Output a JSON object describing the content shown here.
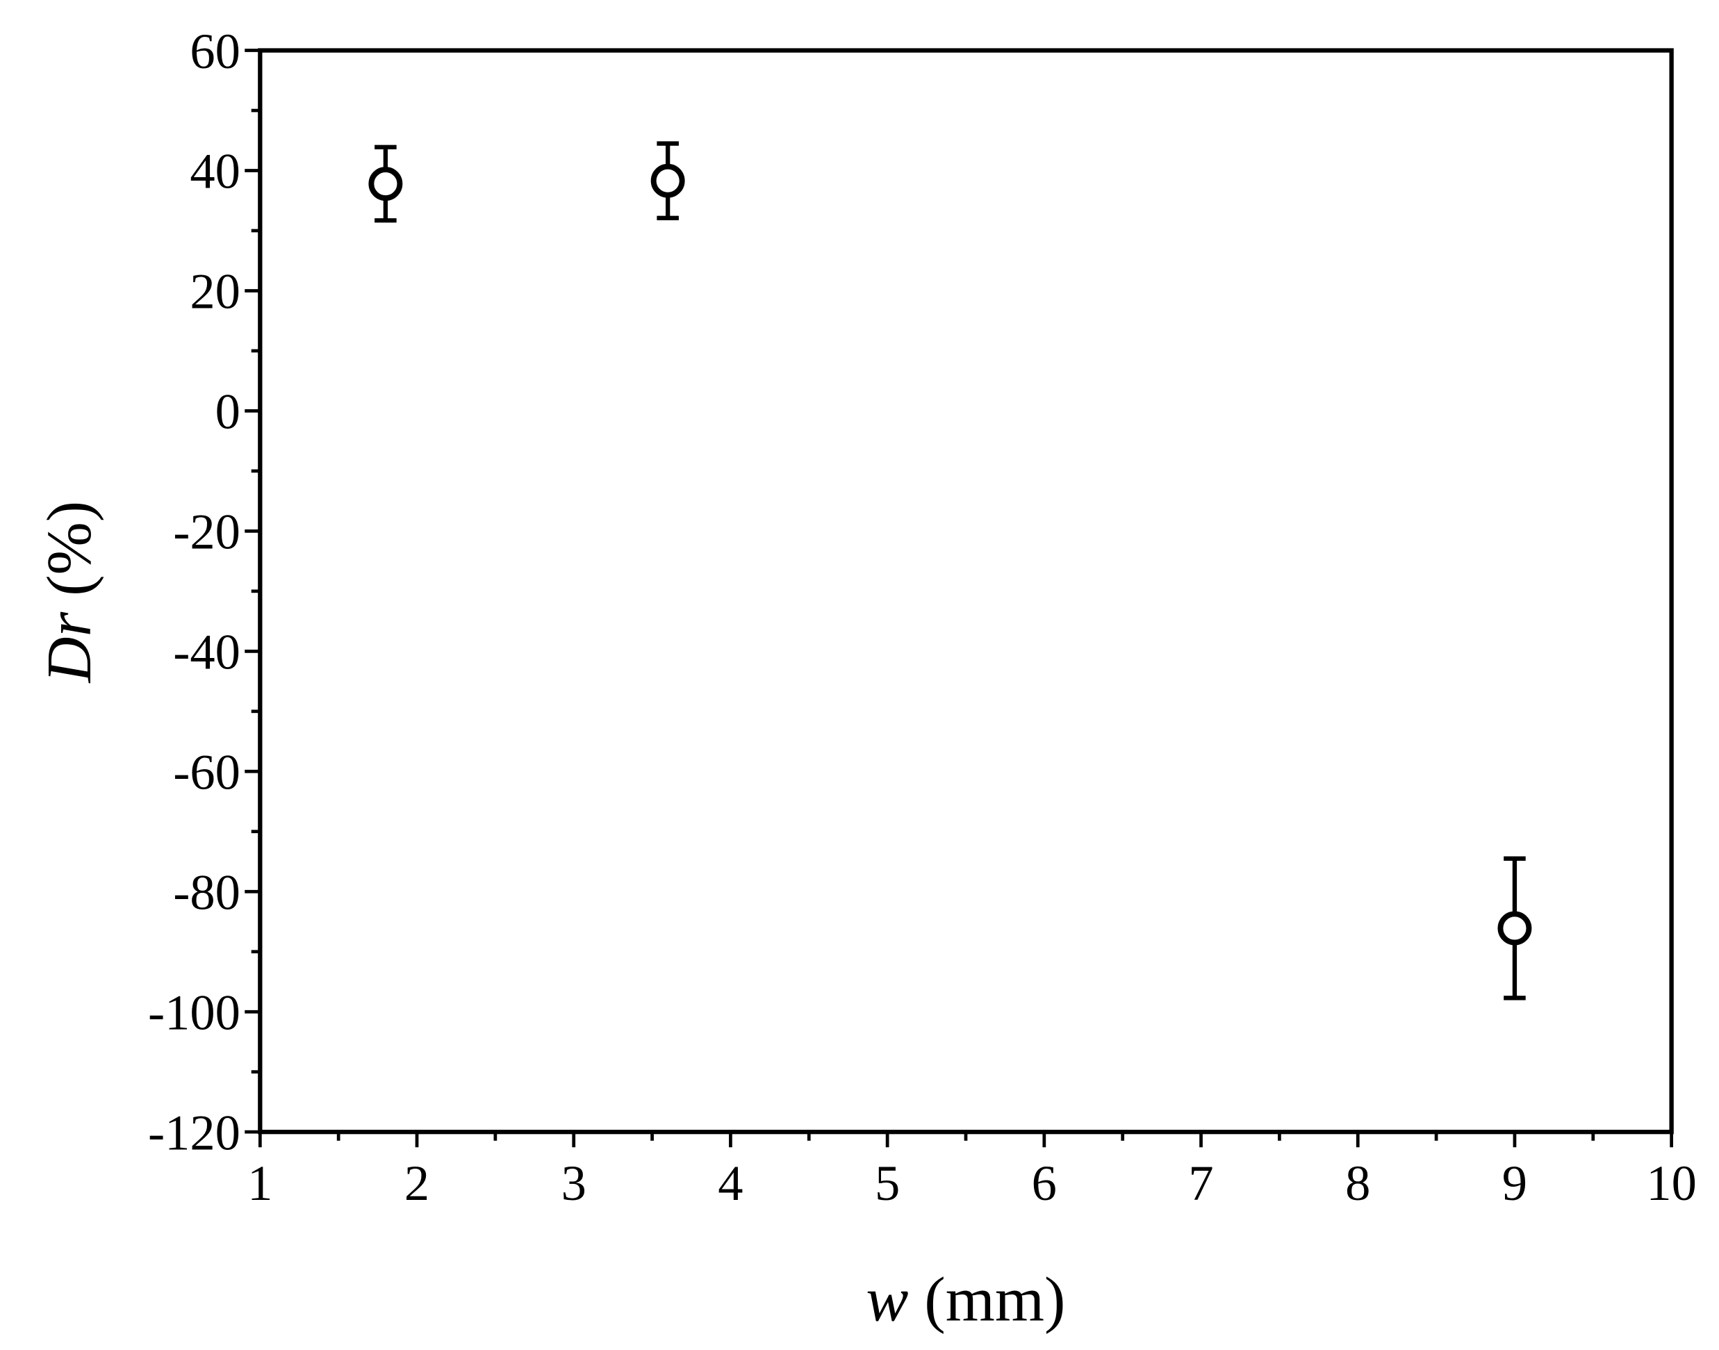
{
  "chart_data": {
    "type": "scatter",
    "xlabel": "w (mm)",
    "ylabel": "Dr (%)",
    "xlim": [
      1,
      10
    ],
    "xticks": [
      1,
      2,
      3,
      4,
      5,
      6,
      7,
      8,
      9,
      10
    ],
    "ylim": [
      -120,
      60
    ],
    "yticks": [
      -120,
      -100,
      -80,
      -60,
      -40,
      -20,
      0,
      20,
      40,
      60
    ],
    "series": [
      {
        "color": "#000000",
        "x": [
          1.8,
          3.6,
          9.0
        ],
        "values": [
          37.8,
          38.3,
          -86.1
        ],
        "errors": [
          6.1,
          6.2,
          11.6
        ]
      }
    ]
  }
}
